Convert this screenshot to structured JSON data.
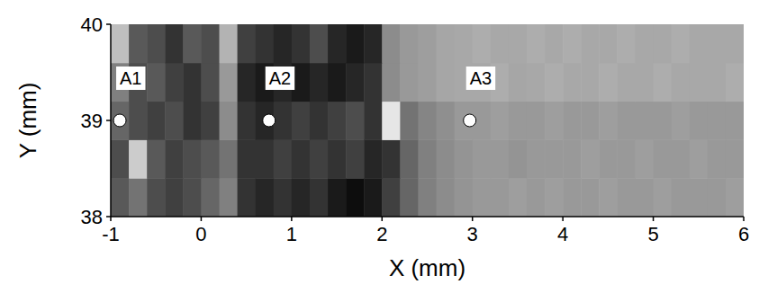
{
  "chart_data": {
    "type": "heatmap",
    "x_label": "X (mm)",
    "y_label": "Y (mm)",
    "xlim": [
      -1,
      6
    ],
    "ylim": [
      38,
      40
    ],
    "xticks": [
      -1,
      0,
      1,
      2,
      3,
      4,
      5,
      6
    ],
    "yticks": [
      38,
      39,
      40
    ],
    "x": [
      -0.9,
      -0.7,
      -0.5,
      -0.3,
      -0.1,
      0.1,
      0.3,
      0.5,
      0.7,
      0.9,
      1.1,
      1.3,
      1.5,
      1.7,
      1.9,
      2.1,
      2.3,
      2.5,
      2.7,
      2.9,
      3.1,
      3.3,
      3.5,
      3.7,
      3.9,
      4.1,
      4.3,
      4.5,
      4.7,
      4.9,
      5.1,
      5.3,
      5.5,
      5.7,
      5.9
    ],
    "y": [
      38.2,
      38.6,
      39.0,
      39.4,
      39.8
    ],
    "zlim": [
      0,
      1
    ],
    "z": [
      [
        0.35,
        0.45,
        0.3,
        0.25,
        0.3,
        0.4,
        0.5,
        0.2,
        0.15,
        0.2,
        0.15,
        0.2,
        0.1,
        0.05,
        0.1,
        0.25,
        0.4,
        0.5,
        0.55,
        0.58,
        0.6,
        0.6,
        0.62,
        0.6,
        0.62,
        0.6,
        0.6,
        0.62,
        0.6,
        0.6,
        0.62,
        0.6,
        0.6,
        0.6,
        0.62
      ],
      [
        0.3,
        0.8,
        0.35,
        0.25,
        0.3,
        0.35,
        0.45,
        0.2,
        0.2,
        0.25,
        0.2,
        0.25,
        0.2,
        0.25,
        0.15,
        0.2,
        0.4,
        0.5,
        0.55,
        0.58,
        0.6,
        0.6,
        0.58,
        0.6,
        0.6,
        0.6,
        0.62,
        0.6,
        0.6,
        0.62,
        0.6,
        0.6,
        0.62,
        0.6,
        0.6
      ],
      [
        0.4,
        0.3,
        0.25,
        0.3,
        0.2,
        0.25,
        0.55,
        0.2,
        0.15,
        0.2,
        0.25,
        0.2,
        0.25,
        0.3,
        0.2,
        0.9,
        0.45,
        0.52,
        0.56,
        0.6,
        0.6,
        0.62,
        0.6,
        0.6,
        0.62,
        0.6,
        0.6,
        0.62,
        0.6,
        0.6,
        0.6,
        0.62,
        0.6,
        0.6,
        0.6
      ],
      [
        0.5,
        0.3,
        0.35,
        0.25,
        0.2,
        0.3,
        0.6,
        0.15,
        0.1,
        0.15,
        0.1,
        0.15,
        0.1,
        0.15,
        0.2,
        0.55,
        0.6,
        0.62,
        0.65,
        0.66,
        0.66,
        0.68,
        0.65,
        0.66,
        0.68,
        0.66,
        0.66,
        0.68,
        0.66,
        0.66,
        0.68,
        0.66,
        0.66,
        0.66,
        0.68
      ],
      [
        0.75,
        0.35,
        0.3,
        0.2,
        0.35,
        0.3,
        0.7,
        0.25,
        0.2,
        0.15,
        0.2,
        0.3,
        0.15,
        0.1,
        0.15,
        0.55,
        0.6,
        0.62,
        0.65,
        0.66,
        0.68,
        0.66,
        0.66,
        0.68,
        0.66,
        0.68,
        0.66,
        0.66,
        0.68,
        0.66,
        0.66,
        0.68,
        0.66,
        0.66,
        0.66
      ]
    ],
    "points": [
      {
        "label": "A1",
        "x": -0.9,
        "y": 39
      },
      {
        "label": "A2",
        "x": 0.75,
        "y": 39
      },
      {
        "label": "A3",
        "x": 2.97,
        "y": 39
      }
    ]
  }
}
